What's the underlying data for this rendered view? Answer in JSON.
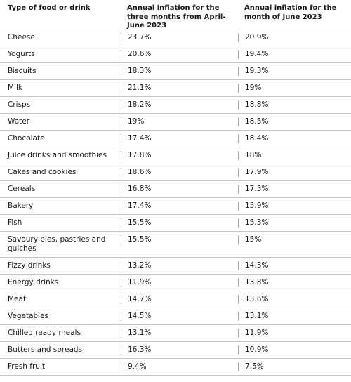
{
  "table": {
    "headers": [
      "Type of food or drink",
      "Annual inflation for the three months from April-June 2023",
      "Annual inflation for the month of June 2023"
    ],
    "rows": [
      [
        "Cheese",
        "23.7%",
        "20.9%"
      ],
      [
        "Yogurts",
        "20.6%",
        "19.4%"
      ],
      [
        "Biscuits",
        "18.3%",
        "19.3%"
      ],
      [
        "Milk",
        "21.1%",
        "19%"
      ],
      [
        "Crisps",
        "18.2%",
        "18.8%"
      ],
      [
        "Water",
        "19%",
        "18.5%"
      ],
      [
        "Chocolate",
        "17.4%",
        "18.4%"
      ],
      [
        "Juice drinks and smoothies",
        "17.8%",
        "18%"
      ],
      [
        "Cakes and cookies",
        "18.6%",
        "17.9%"
      ],
      [
        "Cereals",
        "16.8%",
        "17.5%"
      ],
      [
        "Bakery",
        "17.4%",
        "15.9%"
      ],
      [
        "Fish",
        "15.5%",
        "15.3%"
      ],
      [
        "Savoury pies, pastries and quiches",
        "15.5%",
        "15%"
      ],
      [
        "Fizzy drinks",
        "13.2%",
        "14.3%"
      ],
      [
        "Energy drinks",
        "11.9%",
        "13.8%"
      ],
      [
        "Meat",
        "14.7%",
        "13.6%"
      ],
      [
        "Vegetables",
        "14.5%",
        "13.1%"
      ],
      [
        "Chilled ready meals",
        "13.1%",
        "11.9%"
      ],
      [
        "Butters and spreads",
        "16.3%",
        "10.9%"
      ],
      [
        "Fresh fruit",
        "9.4%",
        "7.5%"
      ]
    ]
  }
}
